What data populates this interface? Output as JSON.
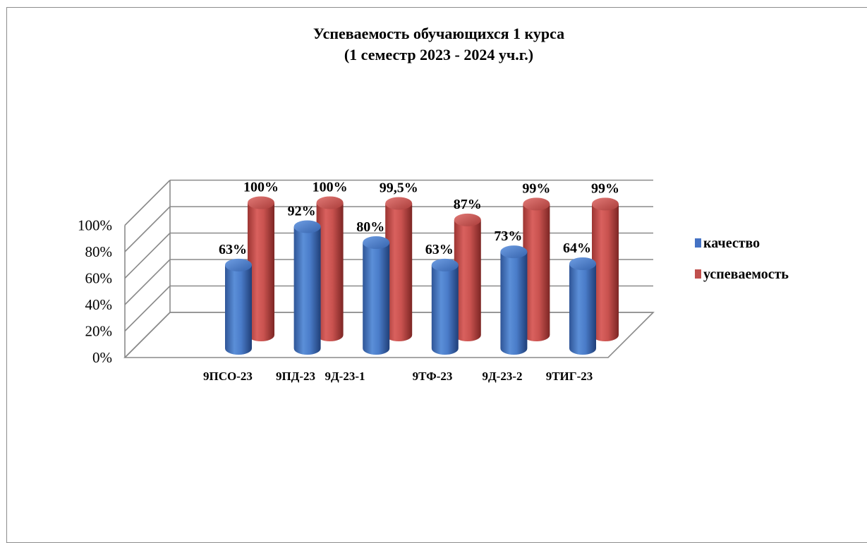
{
  "chart_data": {
    "type": "bar",
    "subtype": "3d-cylinder-clustered",
    "title_line1": "Успеваемость обучающихся 1 курса",
    "title_line2": "(1 семестр 2023 - 2024 уч.г.)",
    "categories": [
      "9ПСО-23",
      "9ПД-23",
      "9Д-23-1",
      "9ТФ-23",
      "9Д-23-2",
      "9ТИГ-23"
    ],
    "series": [
      {
        "name": "качество",
        "color": "#4472C4",
        "values": [
          63,
          92,
          80,
          63,
          73,
          64
        ],
        "labels": [
          "63%",
          "92%",
          "80%",
          "63%",
          "73%",
          "64%"
        ]
      },
      {
        "name": "успеваемость",
        "color": "#C0504D",
        "values": [
          100,
          100,
          99.5,
          87,
          99,
          99
        ],
        "labels": [
          "100%",
          "100%",
          "99,5%",
          "87%",
          "99%",
          "99%"
        ]
      }
    ],
    "y_ticks": [
      "0%",
      "20%",
      "40%",
      "60%",
      "80%",
      "100%"
    ],
    "ylim": [
      0,
      100
    ],
    "grid": true,
    "legend_position": "right"
  }
}
